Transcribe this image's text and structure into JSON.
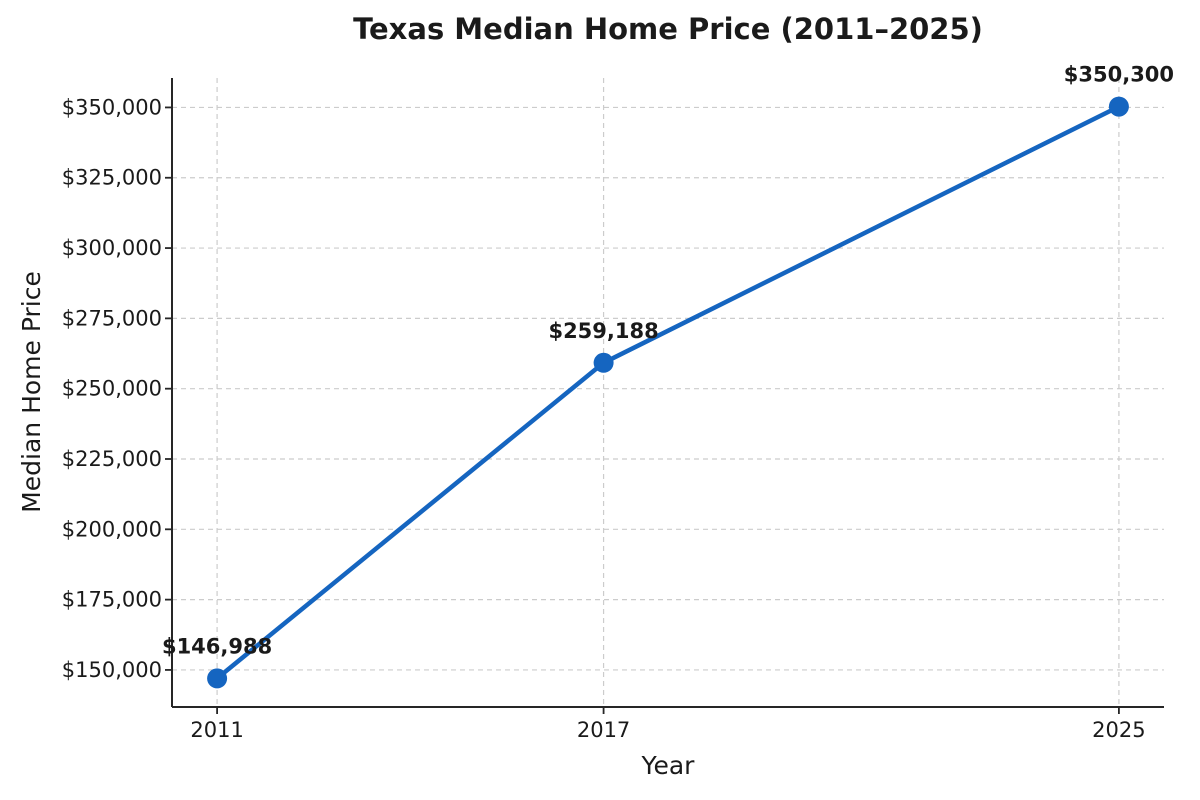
{
  "figure": {
    "background": "#ffffff"
  },
  "chart_data": {
    "type": "line",
    "title": "Texas Median Home Price (2011–2025)",
    "xlabel": "Year",
    "ylabel": "Median Home Price",
    "x": [
      2011,
      2017,
      2025
    ],
    "series": [
      {
        "name": "Median Home Price",
        "values": [
          146988,
          259188,
          350300
        ],
        "point_labels": [
          "$146,988",
          "$259,188",
          "$350,300"
        ],
        "color": "#1565c0",
        "marker": "circle",
        "line_width": 4.5,
        "marker_radius": 10
      }
    ],
    "x_tick_labels": [
      "2011",
      "2017",
      "2025"
    ],
    "y_ticks": [
      150000,
      175000,
      200000,
      225000,
      250000,
      275000,
      300000,
      325000,
      350000
    ],
    "y_tick_labels": [
      "$150,000",
      "$175,000",
      "$200,000",
      "$225,000",
      "$250,000",
      "$275,000",
      "$300,000",
      "$325,000",
      "$350,000"
    ],
    "xlim": [
      2010.3,
      2025.7
    ],
    "ylim": [
      136822,
      360466
    ],
    "grid": {
      "visible": true,
      "style": "dashed",
      "color": "#cccccc"
    },
    "legend": {
      "visible": false
    },
    "colors": {
      "text": "#1a1a1a",
      "spine": "#262626"
    }
  }
}
